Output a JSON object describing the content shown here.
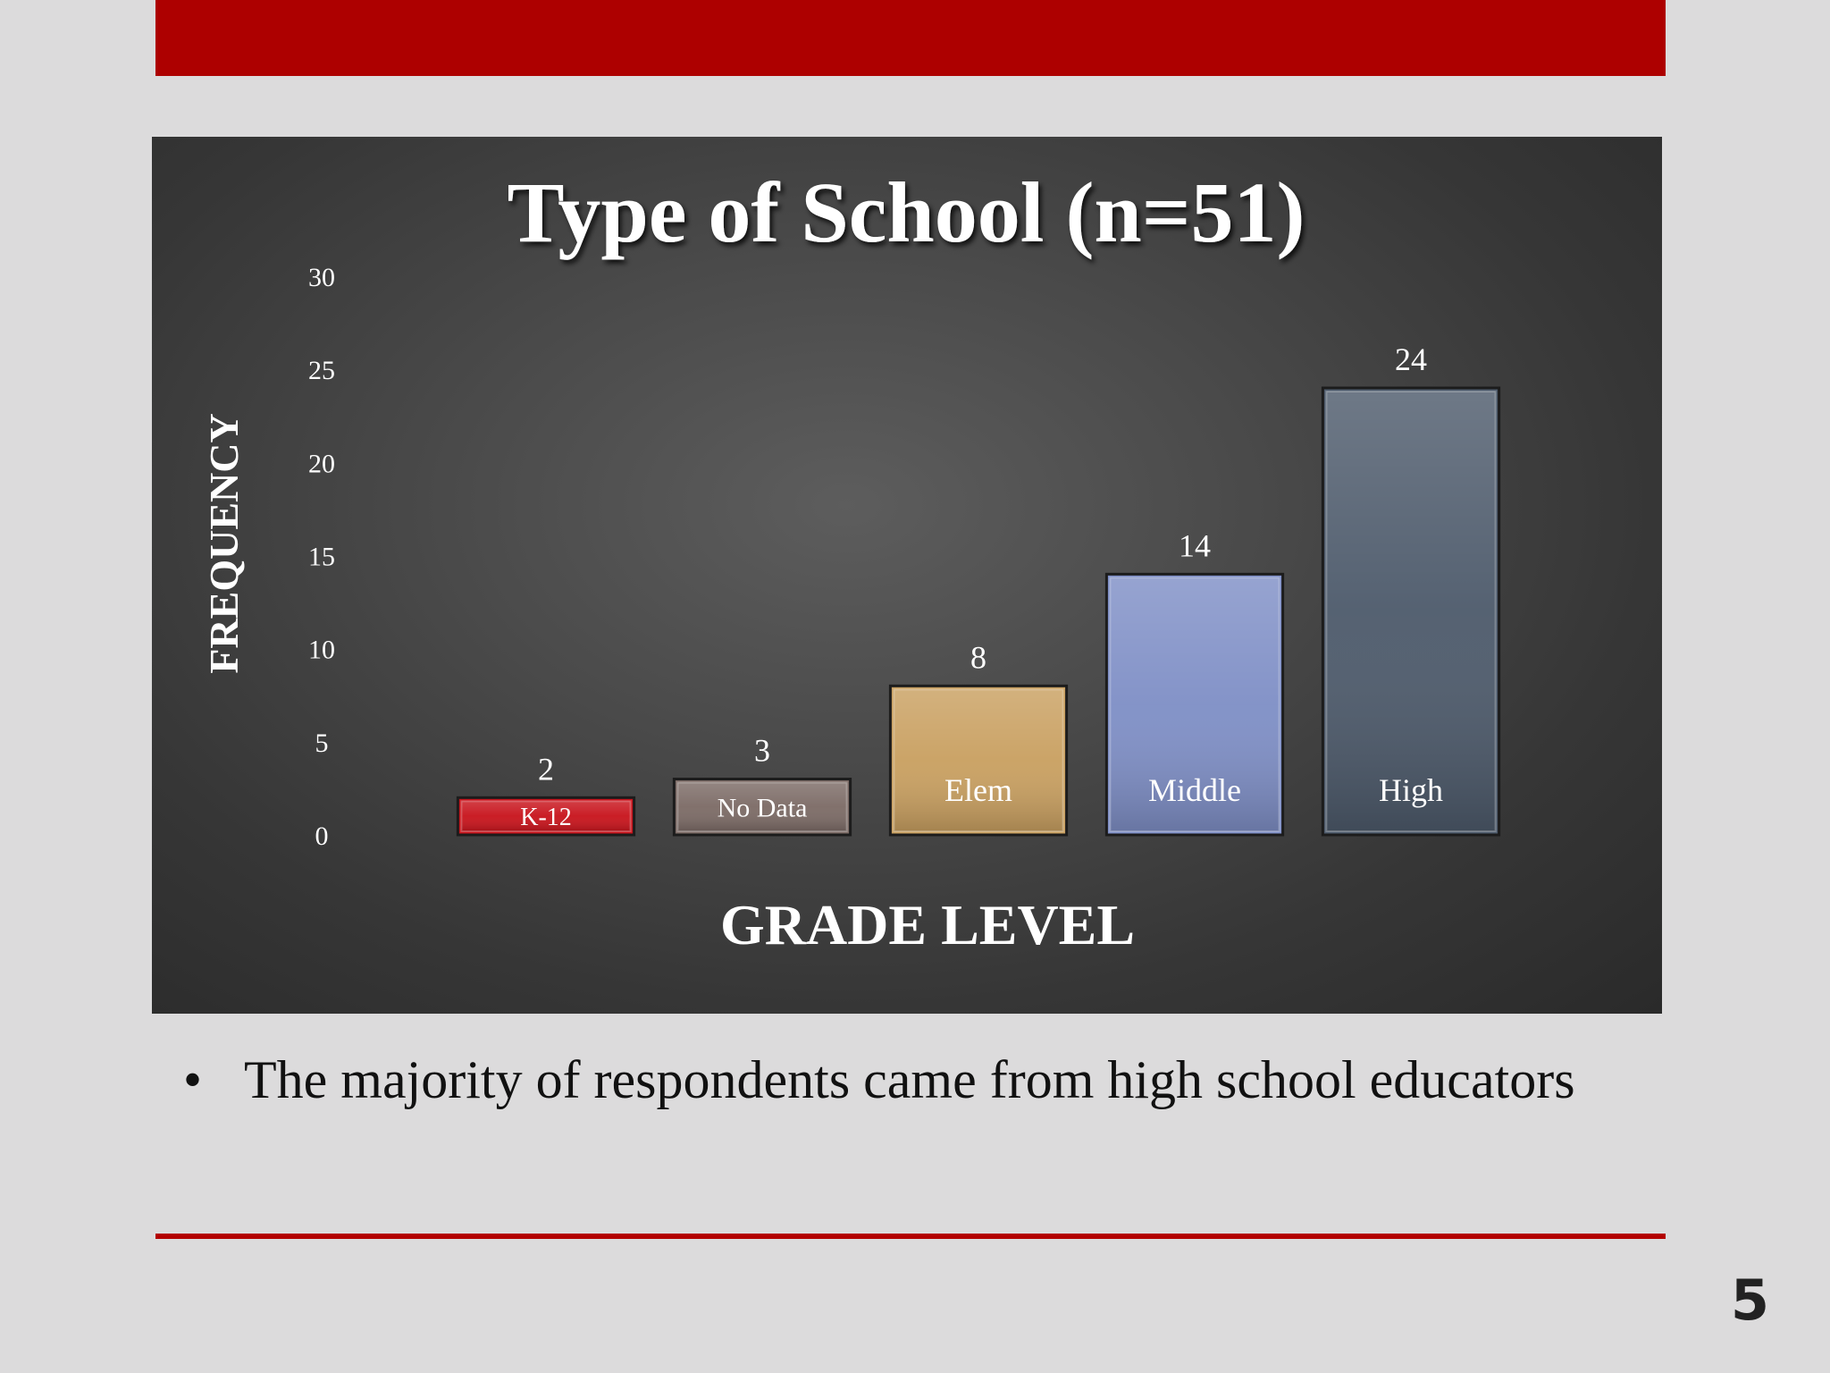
{
  "slide": {
    "bullet_text": "The majority of respondents came from high school educators",
    "page_number": "5",
    "accent_color": "#ad0000"
  },
  "chart_data": {
    "type": "bar",
    "title": "Type of School (n=51)",
    "xlabel": "GRADE LEVEL",
    "ylabel": "FREQUENCY",
    "ylim": [
      0,
      30
    ],
    "yticks": [
      0,
      5,
      10,
      15,
      20,
      25,
      30
    ],
    "grid": false,
    "categories": [
      "K-12",
      "No Data",
      "Elem",
      "Middle",
      "High"
    ],
    "values": [
      2,
      3,
      8,
      14,
      24
    ],
    "colors": [
      "#c8141c",
      "#7c6b66",
      "#c9a061",
      "#7f8fc6",
      "#4e5b6c"
    ]
  }
}
